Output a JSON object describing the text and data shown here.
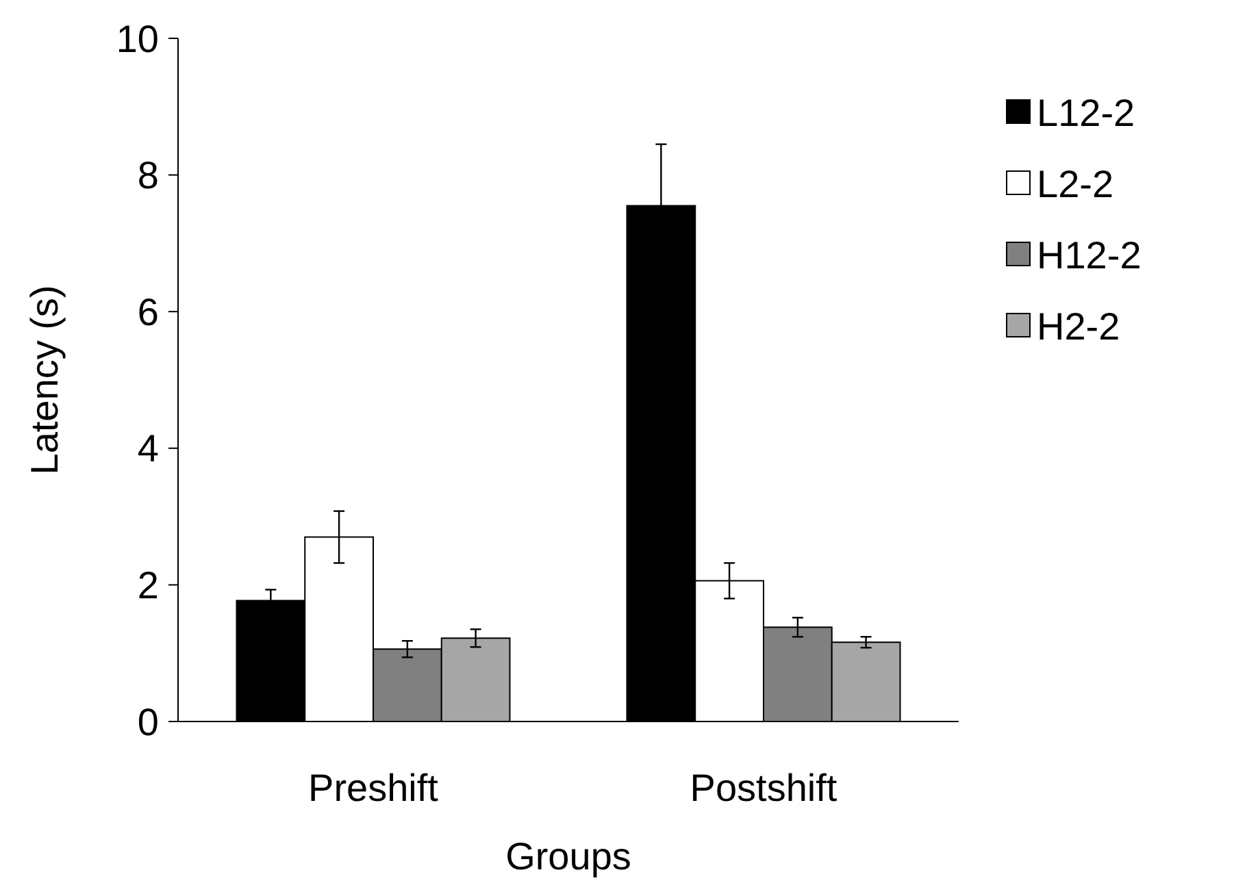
{
  "chart_data": {
    "type": "bar",
    "xlabel": "Groups",
    "ylabel": "Latency (s)",
    "categories": [
      "Preshift",
      "Postshift"
    ],
    "series": [
      {
        "name": "L12-2",
        "color": "#000000",
        "values": [
          1.77,
          7.55
        ],
        "errors": [
          0.16,
          0.9
        ]
      },
      {
        "name": "L2-2",
        "color": "#ffffff",
        "values": [
          2.7,
          2.06
        ],
        "errors": [
          0.38,
          0.26
        ]
      },
      {
        "name": "H12-2",
        "color": "#808080",
        "values": [
          1.06,
          1.38
        ],
        "errors": [
          0.12,
          0.14
        ]
      },
      {
        "name": "H2-2",
        "color": "#a6a6a6",
        "values": [
          1.22,
          1.16
        ],
        "errors": [
          0.13,
          0.08
        ]
      }
    ],
    "ylim": [
      0,
      10
    ],
    "yticks": [
      0,
      2,
      4,
      6,
      8,
      10
    ],
    "grid": false,
    "legend": "right"
  }
}
